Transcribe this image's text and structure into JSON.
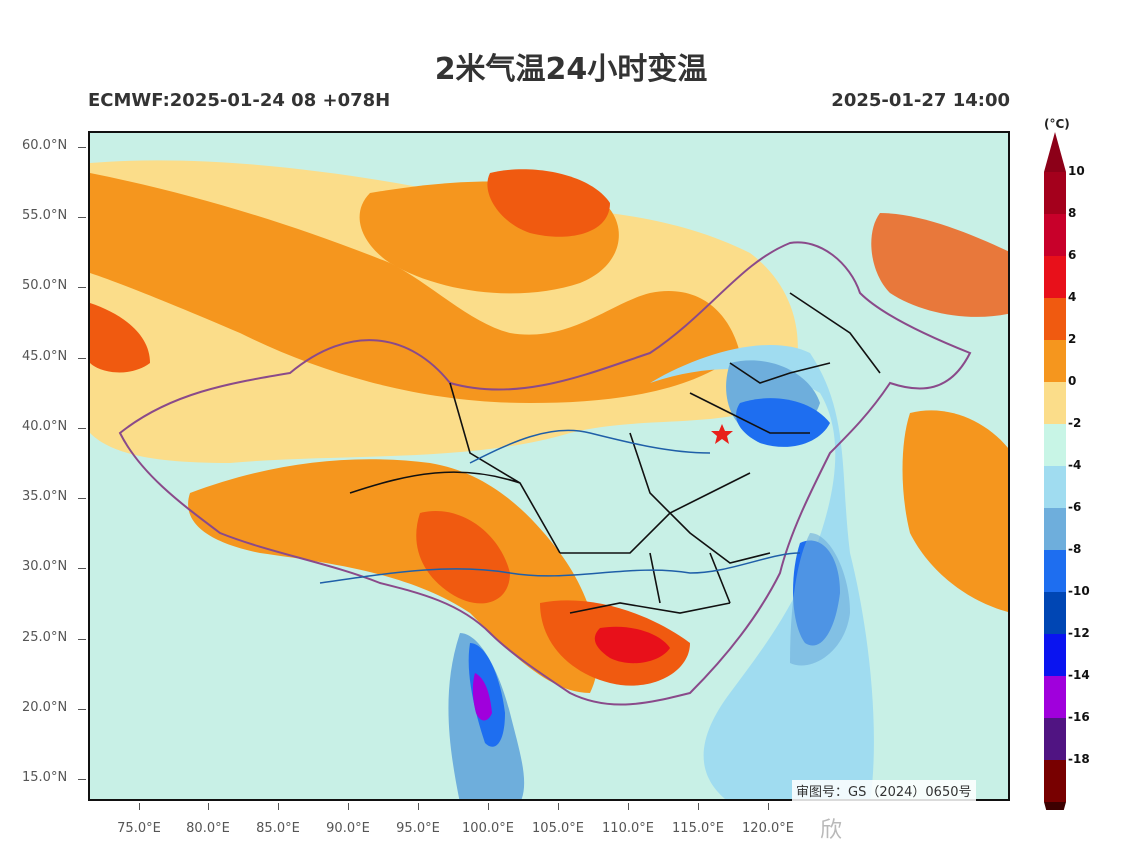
{
  "title": "2米气温24小时变温",
  "subtitle_left": "ECMWF:2025-01-24 08 +078H",
  "subtitle_right": "2025-01-27 14:00",
  "lat_labels": [
    "60.0°N",
    "55.0°N",
    "50.0°N",
    "45.0°N",
    "40.0°N",
    "35.0°N",
    "30.0°N",
    "25.0°N",
    "20.0°N",
    "15.0°N"
  ],
  "lon_labels": [
    "75.0°E",
    "80.0°E",
    "85.0°E",
    "90.0°E",
    "95.0°E",
    "100.0°E",
    "105.0°E",
    "110.0°E",
    "115.0°E",
    "120.0°E"
  ],
  "colorbar": {
    "unit": "(°C)",
    "labels": [
      "10",
      "8",
      "6",
      "4",
      "2",
      "0",
      "-2",
      "-4",
      "-6",
      "-8",
      "-10",
      "-12",
      "-14",
      "-16",
      "-18"
    ],
    "colors_top_to_bottom": [
      "#a4001c",
      "#c8002a",
      "#e8101a",
      "#f05a10",
      "#f5961e",
      "#fbdd8a",
      "#c8f5e6",
      "#a0dcf0",
      "#6eaedc",
      "#1e6ef0",
      "#0046b4",
      "#0a14f0",
      "#a000dc",
      "#501482",
      "#780000"
    ],
    "top_arrow_color": "#8c0018",
    "bottom_arrow_color": "#3c0000"
  },
  "approval_text": "审图号：GS（2024）0650号",
  "watermark": "欣",
  "marker": "star-red"
}
